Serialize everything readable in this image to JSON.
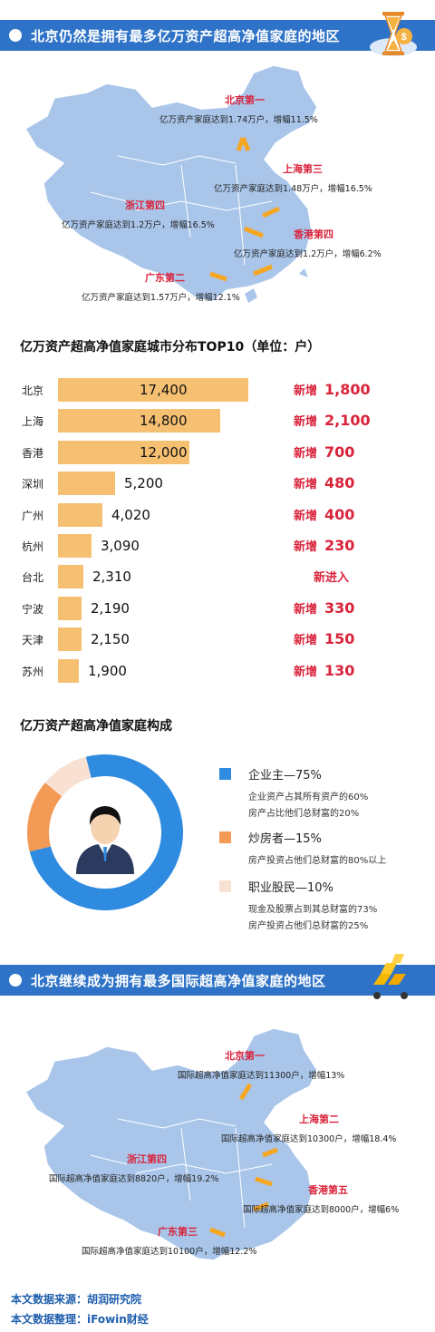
{
  "colors": {
    "banner": "#2e73c7",
    "accent_red": "#d9233b",
    "bar": "#f6c072",
    "map": "#a9c6ea",
    "pie_blue": "#2f8be0",
    "pie_orange": "#f29a56",
    "pie_beige": "#f8e0d3"
  },
  "banner1": {
    "title": "北京仍然是拥有最多亿万资产超高净值家庭的地区",
    "icon": "hourglass-money-icon"
  },
  "map1": {
    "beijing": {
      "name": "北京第一",
      "desc": "亿万资产家庭达到1.74万户，增幅11.5%"
    },
    "shanghai": {
      "name": "上海第三",
      "desc": "亿万资产家庭达到1.48万户，增幅16.5%"
    },
    "zhejiang": {
      "name": "浙江第四",
      "desc": "亿万资产家庭达到1.2万户，增幅16.5%"
    },
    "hongkong": {
      "name": "香港第四",
      "desc": "亿万资产家庭达到1.2万户，增幅6.2%"
    },
    "guangdong": {
      "name": "广东第二",
      "desc": "亿万资产家庭达到1.57万户，增幅12.1%"
    }
  },
  "top10_title": "亿万资产超高净值家庭城市分布TOP10（单位：户）",
  "top10": {
    "rows": [
      {
        "city": "北京",
        "value": 17400,
        "label": "17,400",
        "inc_word": "新增",
        "inc": "1,800"
      },
      {
        "city": "上海",
        "value": 14800,
        "label": "14,800",
        "inc_word": "新增",
        "inc": "2,100"
      },
      {
        "city": "香港",
        "value": 12000,
        "label": "12,000",
        "inc_word": "新增",
        "inc": "700"
      },
      {
        "city": "深圳",
        "value": 5200,
        "label": "5,200",
        "inc_word": "新增",
        "inc": "480"
      },
      {
        "city": "广州",
        "value": 4020,
        "label": "4,020",
        "inc_word": "新增",
        "inc": "400"
      },
      {
        "city": "杭州",
        "value": 3090,
        "label": "3,090",
        "inc_word": "新增",
        "inc": "230"
      },
      {
        "city": "台北",
        "value": 2310,
        "label": "2,310",
        "inc_word": "新进入",
        "inc": ""
      },
      {
        "city": "宁波",
        "value": 2190,
        "label": "2,190",
        "inc_word": "新增",
        "inc": "330"
      },
      {
        "city": "天津",
        "value": 2150,
        "label": "2,150",
        "inc_word": "新增",
        "inc": "150"
      },
      {
        "city": "苏州",
        "value": 1900,
        "label": "1,900",
        "inc_word": "新增",
        "inc": "130"
      }
    ]
  },
  "composition": {
    "title": "亿万资产超高净值家庭构成",
    "icon": "businessman-avatar-icon",
    "items": [
      {
        "name": "企业主—75%",
        "share": 75,
        "desc1": "企业资产占其所有资产的60%",
        "desc2": "房产占比他们总财富的20%"
      },
      {
        "name": "炒房者—15%",
        "share": 15,
        "desc1": "房产投资占他们总财富的80%以上",
        "desc2": ""
      },
      {
        "name": "职业股民—10%",
        "share": 10,
        "desc1": "现金及股票占到其总财富的73%",
        "desc2": "房产投资占他们总财富的25%"
      }
    ]
  },
  "banner2": {
    "title": "北京继续成为拥有最多国际超高净值家庭的地区",
    "icon": "gold-cart-icon"
  },
  "map2": {
    "beijing": {
      "name": "北京第一",
      "desc": "国际超高净值家庭达到11300户，增幅13%"
    },
    "shanghai": {
      "name": "上海第二",
      "desc": "国际超高净值家庭达到10300户，增幅18.4%"
    },
    "zhejiang": {
      "name": "浙江第四",
      "desc": "国际超高净值家庭达到8820户，增幅19.2%"
    },
    "hongkong": {
      "name": "香港第五",
      "desc": "国际超高净值家庭达到8000户，增幅6%"
    },
    "guangdong": {
      "name": "广东第三",
      "desc": "国际超高净值家庭达到10100户，增幅12.2%"
    }
  },
  "footer": {
    "source": "本文数据来源：胡润研究院",
    "editor": "本文数据整理：iFowin财经"
  }
}
